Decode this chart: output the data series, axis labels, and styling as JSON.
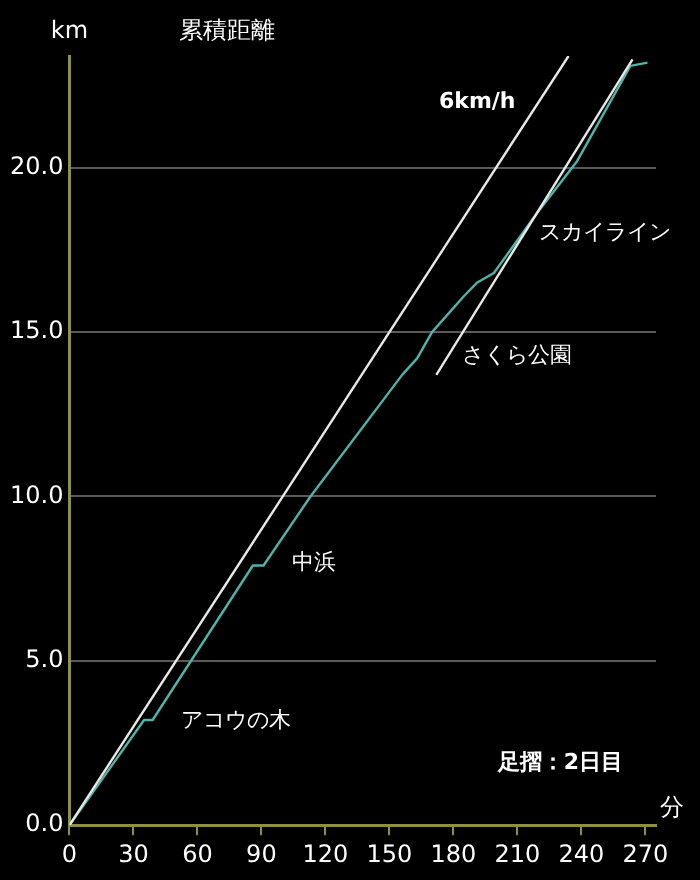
{
  "chart_data": {
    "type": "line",
    "title": "累積距離",
    "xlabel": "分",
    "ylabel": "km",
    "xlim": [
      0,
      275
    ],
    "ylim": [
      0,
      23.4
    ],
    "xticks": [
      0,
      30,
      60,
      90,
      120,
      150,
      180,
      210,
      240,
      270
    ],
    "yticks": [
      {
        "value": 0,
        "label": "0.0"
      },
      {
        "value": 5,
        "label": "5.0"
      },
      {
        "value": 10,
        "label": "10.0"
      },
      {
        "value": 15,
        "label": "15.0"
      },
      {
        "value": 20,
        "label": "20.0"
      }
    ],
    "grid": "y",
    "legend": false,
    "marker": "none",
    "line_style": "solid",
    "series": [
      {
        "color": "#e8e8e8",
        "x": [
          0,
          234
        ],
        "values": [
          0,
          23.4
        ]
      },
      {
        "color": "#e8e8e8",
        "x": [
          172,
          264
        ],
        "values": [
          13.7,
          23.3
        ]
      },
      {
        "color": "#4fb3a9",
        "x": [
          0,
          35,
          39,
          86,
          91,
          113,
          156,
          163,
          170,
          185,
          191,
          199,
          219,
          238,
          263,
          271
        ],
        "values": [
          0,
          3.2,
          3.2,
          7.9,
          7.9,
          10,
          13.7,
          14.2,
          15,
          16.1,
          16.5,
          16.8,
          18.6,
          20.2,
          23.1,
          23.2
        ]
      }
    ],
    "annotations": [
      "6km/h",
      "スカイライン",
      "さくら公園",
      "中浜",
      "アコウの木",
      "足摺：2日目"
    ]
  }
}
